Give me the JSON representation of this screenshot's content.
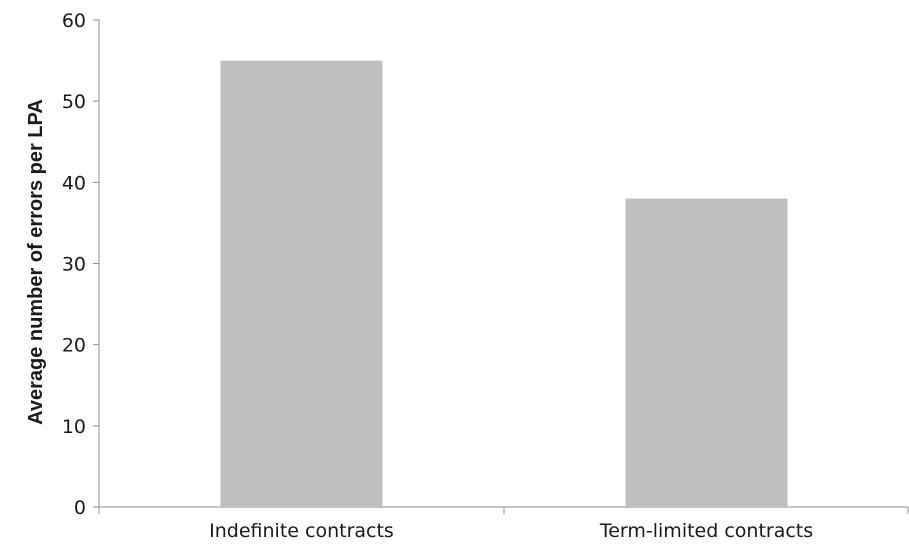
{
  "chart_data": {
    "type": "bar",
    "categories": [
      "Indefinite contracts",
      "Term-limited contracts"
    ],
    "series": [
      {
        "values": [
          55,
          38
        ],
        "color": "#bfbfbf"
      }
    ],
    "title": "",
    "xlabel": "",
    "ylabel": "Average number of errors per LPA",
    "ylim": [
      0,
      60
    ],
    "yticks": [
      0,
      10,
      20,
      30,
      40,
      50,
      60
    ],
    "grid": false,
    "legend": "none"
  }
}
